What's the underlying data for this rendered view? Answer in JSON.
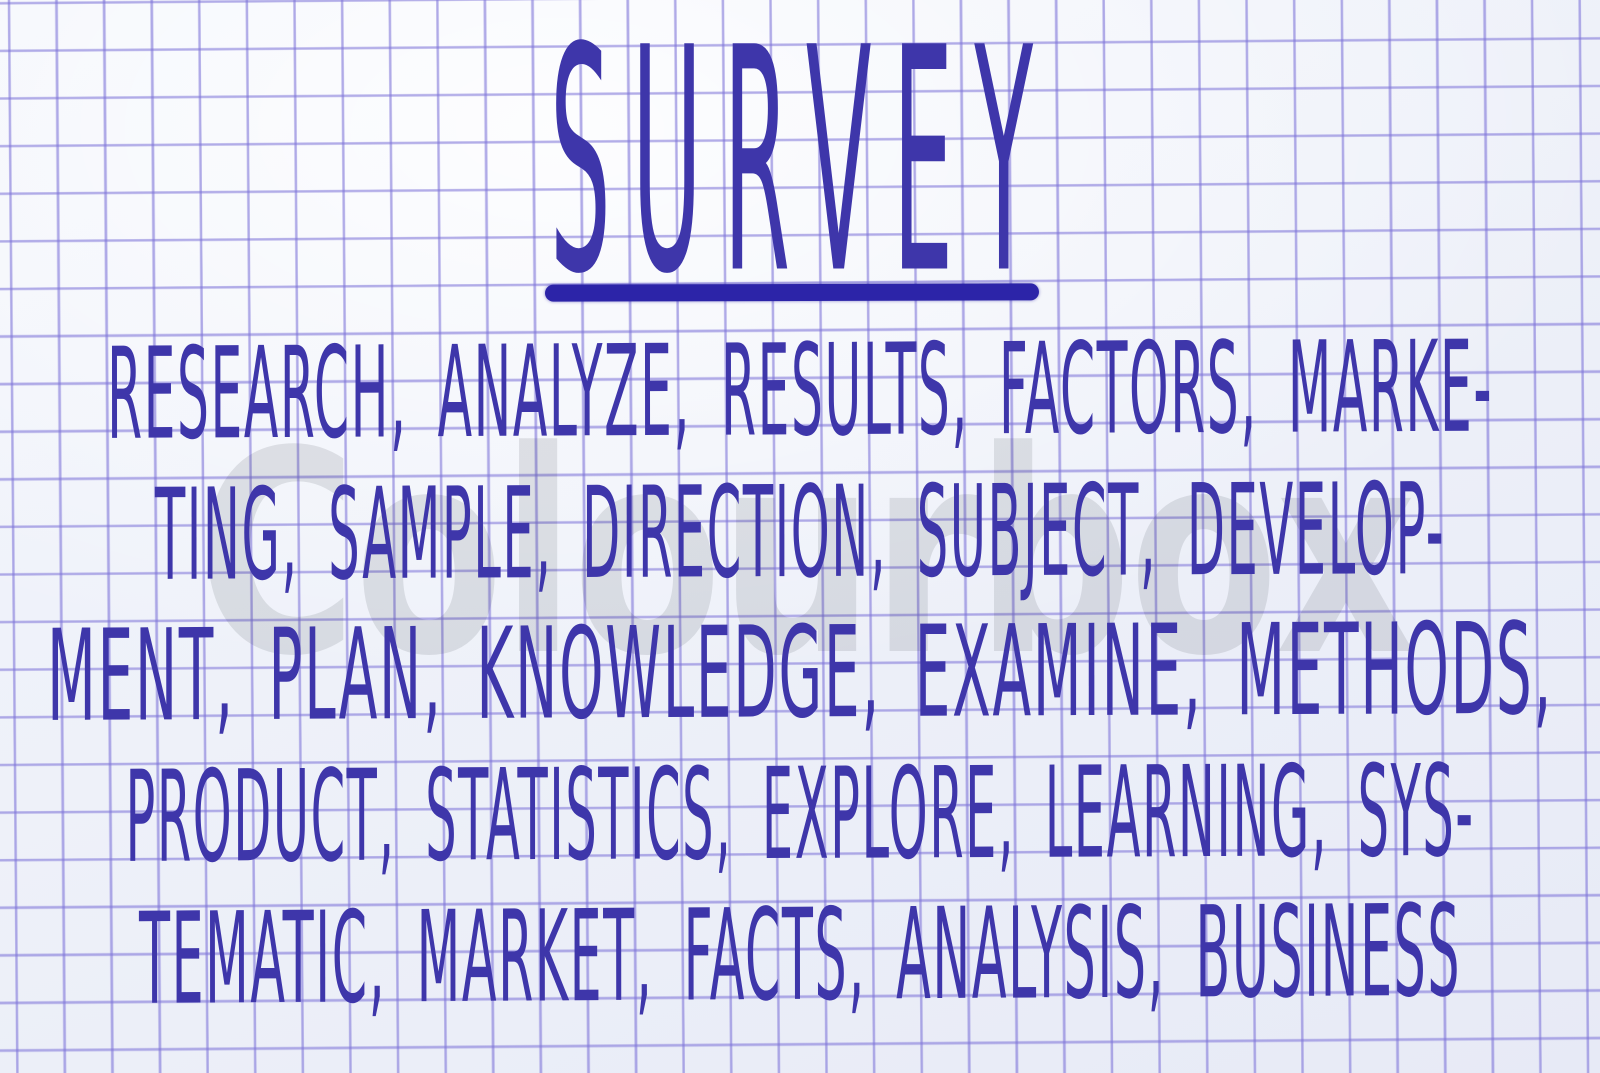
{
  "photo": {
    "title": "SURVEY",
    "word_lines": [
      "RESEARCH, ANALYZE, RESULTS, FACTORS, MARKE-",
      "TING, SAMPLE, DIRECTION, SUBJECT, DEVELOP-",
      "MENT, PLAN, KNOWLEDGE, EXAMINE, METHODS,",
      "PRODUCT, STATISTICS, EXPLORE, LEARNING, SYS-",
      "TEMATIC, MARKET, FACTS, ANALYSIS, BUSINESS"
    ],
    "watermark": "Colourbox",
    "colors": {
      "ink": "#3e36aa",
      "underline": "#2c24a8",
      "grid": "#7d73d8",
      "paper": "#eef1f9",
      "watermark": "#555a64"
    }
  }
}
